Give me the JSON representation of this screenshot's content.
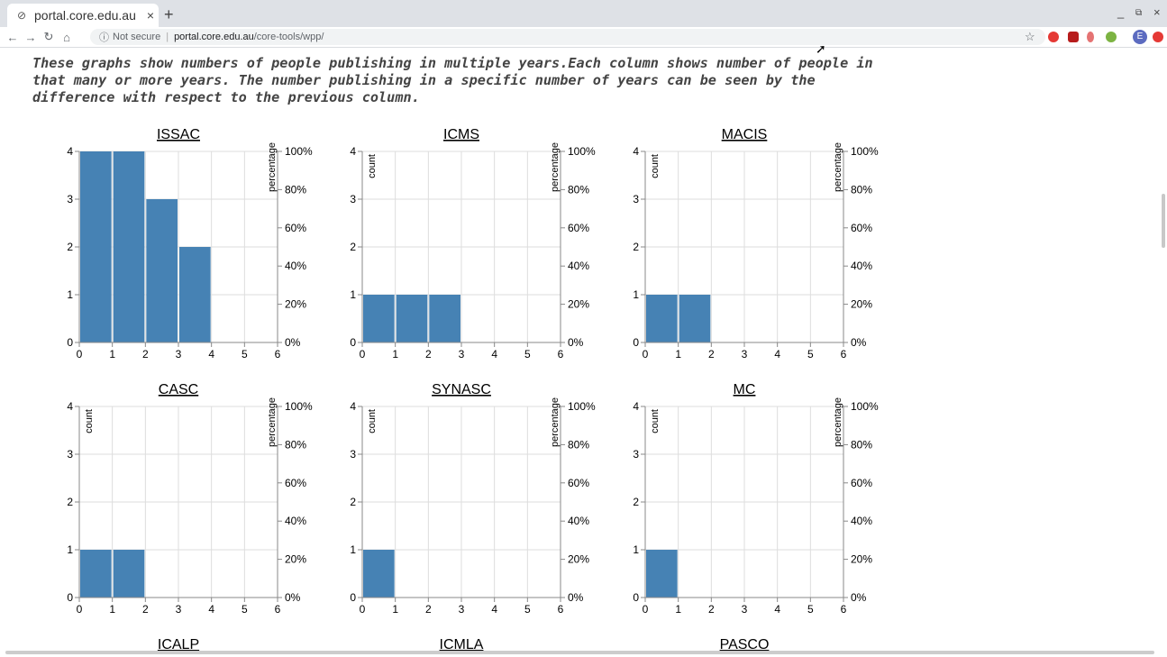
{
  "browser": {
    "tab_title": "portal.core.edu.au",
    "tab_close": "×",
    "new_tab": "+",
    "not_secure": "Not secure",
    "url_host": "portal.core.edu.au",
    "url_path": "/core-tools/wpp/",
    "minimize": "_",
    "restore": "⧉",
    "close": "×",
    "profile_initial": "E"
  },
  "intro": "These graphs show numbers of people publishing in multiple years.Each column shows number of people in that many or more years. The number publishing in a specific number of years can be seen by the difference with respect to the previous column.",
  "axis": {
    "x_ticks": [
      "0",
      "1",
      "2",
      "3",
      "4",
      "5",
      "6"
    ],
    "y_ticks": [
      "0",
      "1",
      "2",
      "3",
      "4"
    ],
    "pct_ticks": [
      "0%",
      "20%",
      "40%",
      "60%",
      "80%",
      "100%"
    ],
    "count_label": "count",
    "percentage_label": "percentage"
  },
  "colors": {
    "bar": "#4682b4"
  },
  "chart_data": [
    {
      "type": "bar",
      "title": "ISSAC",
      "x": [
        1,
        2,
        3,
        4
      ],
      "values": [
        4,
        4,
        3,
        2
      ],
      "xlim": [
        0,
        6
      ],
      "ylim": [
        0,
        4
      ],
      "show_count_label": false
    },
    {
      "type": "bar",
      "title": "ICMS",
      "x": [
        1,
        2,
        3
      ],
      "values": [
        1,
        1,
        1
      ],
      "xlim": [
        0,
        6
      ],
      "ylim": [
        0,
        4
      ],
      "show_count_label": true
    },
    {
      "type": "bar",
      "title": "MACIS",
      "x": [
        1,
        2
      ],
      "values": [
        1,
        1
      ],
      "xlim": [
        0,
        6
      ],
      "ylim": [
        0,
        4
      ],
      "show_count_label": true
    },
    {
      "type": "bar",
      "title": "CASC",
      "x": [
        1,
        2
      ],
      "values": [
        1,
        1
      ],
      "xlim": [
        0,
        6
      ],
      "ylim": [
        0,
        4
      ],
      "show_count_label": true
    },
    {
      "type": "bar",
      "title": "SYNASC",
      "x": [
        1
      ],
      "values": [
        1
      ],
      "xlim": [
        0,
        6
      ],
      "ylim": [
        0,
        4
      ],
      "show_count_label": true
    },
    {
      "type": "bar",
      "title": "MC",
      "x": [
        1
      ],
      "values": [
        1
      ],
      "xlim": [
        0,
        6
      ],
      "ylim": [
        0,
        4
      ],
      "show_count_label": true
    },
    {
      "type": "bar",
      "title": "ICALP",
      "x": [],
      "values": [],
      "xlim": [
        0,
        6
      ],
      "ylim": [
        0,
        4
      ],
      "show_count_label": false
    },
    {
      "type": "bar",
      "title": "ICMLA",
      "x": [],
      "values": [],
      "xlim": [
        0,
        6
      ],
      "ylim": [
        0,
        4
      ],
      "show_count_label": false
    },
    {
      "type": "bar",
      "title": "PASCO",
      "x": [],
      "values": [],
      "xlim": [
        0,
        6
      ],
      "ylim": [
        0,
        4
      ],
      "show_count_label": false
    }
  ]
}
